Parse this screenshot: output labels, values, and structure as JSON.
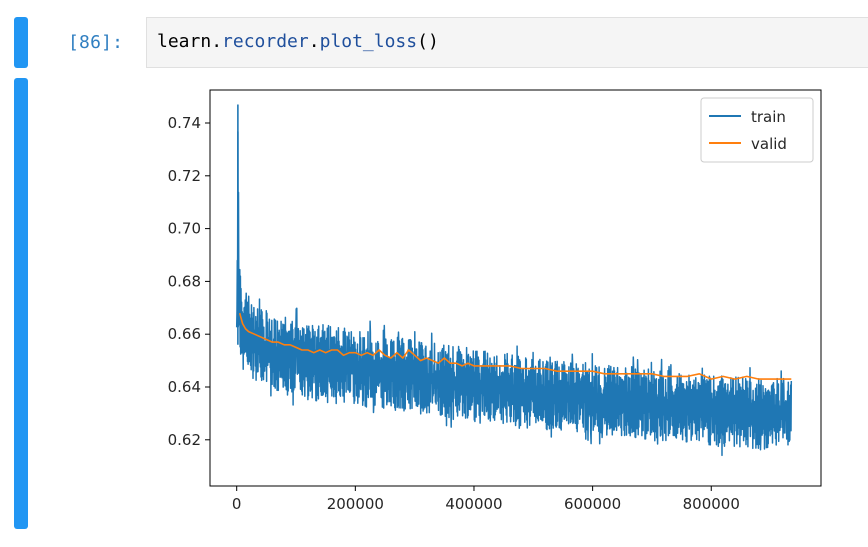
{
  "cell": {
    "prompt": "[86]:",
    "code": {
      "obj": "learn",
      "dot1": ".",
      "attr1": "recorder",
      "dot2": ".",
      "attr2": "plot_loss",
      "parens": "()"
    }
  },
  "colors": {
    "cell_bar": "#2196f3",
    "train": "#1f77b4",
    "valid": "#ff7f0e"
  },
  "chart_data": {
    "type": "line",
    "title": "",
    "xlabel": "",
    "ylabel": "",
    "xlim": [
      -45000,
      985000
    ],
    "ylim": [
      0.6025,
      0.7525
    ],
    "x_ticks": [
      0,
      200000,
      400000,
      600000,
      800000
    ],
    "y_ticks": [
      0.62,
      0.64,
      0.66,
      0.68,
      0.7,
      0.72,
      0.74
    ],
    "legend_position": "top-right",
    "grid": false,
    "series": [
      {
        "name": "train",
        "color": "#1f77b4",
        "x": [
          0,
          2000,
          4000,
          6000,
          8000,
          10000,
          15000,
          20000,
          30000,
          40000,
          50000,
          60000,
          80000,
          100000,
          150000,
          200000,
          250000,
          300000,
          350000,
          400000,
          450000,
          500000,
          550000,
          600000,
          650000,
          700000,
          750000,
          800000,
          850000,
          900000,
          935000
        ],
        "upper": [
          0.664,
          0.747,
          0.694,
          0.683,
          0.678,
          0.676,
          0.674,
          0.672,
          0.671,
          0.67,
          0.669,
          0.668,
          0.667,
          0.666,
          0.664,
          0.662,
          0.66,
          0.658,
          0.656,
          0.654,
          0.653,
          0.651,
          0.65,
          0.649,
          0.648,
          0.647,
          0.646,
          0.645,
          0.644,
          0.643,
          0.643
        ],
        "lower": [
          0.655,
          0.656,
          0.652,
          0.65,
          0.648,
          0.647,
          0.645,
          0.643,
          0.641,
          0.64,
          0.639,
          0.638,
          0.637,
          0.636,
          0.634,
          0.633,
          0.631,
          0.63,
          0.628,
          0.627,
          0.626,
          0.624,
          0.623,
          0.622,
          0.621,
          0.62,
          0.619,
          0.618,
          0.617,
          0.616,
          0.616
        ]
      },
      {
        "name": "valid",
        "color": "#ff7f0e",
        "x": [
          5000,
          10000,
          15000,
          20000,
          30000,
          40000,
          50000,
          60000,
          70000,
          80000,
          90000,
          100000,
          110000,
          120000,
          130000,
          140000,
          150000,
          160000,
          170000,
          180000,
          190000,
          200000,
          210000,
          220000,
          230000,
          240000,
          250000,
          260000,
          270000,
          280000,
          290000,
          300000,
          310000,
          320000,
          330000,
          340000,
          350000,
          360000,
          370000,
          380000,
          390000,
          400000,
          420000,
          440000,
          460000,
          480000,
          500000,
          520000,
          540000,
          560000,
          580000,
          600000,
          620000,
          640000,
          660000,
          680000,
          700000,
          720000,
          740000,
          760000,
          780000,
          800000,
          820000,
          840000,
          860000,
          880000,
          900000,
          920000,
          930000,
          935000
        ],
        "values": [
          0.668,
          0.664,
          0.662,
          0.661,
          0.66,
          0.659,
          0.658,
          0.657,
          0.657,
          0.656,
          0.656,
          0.655,
          0.654,
          0.654,
          0.653,
          0.654,
          0.653,
          0.654,
          0.654,
          0.652,
          0.653,
          0.653,
          0.652,
          0.653,
          0.652,
          0.654,
          0.652,
          0.651,
          0.653,
          0.651,
          0.654,
          0.652,
          0.65,
          0.651,
          0.65,
          0.649,
          0.651,
          0.649,
          0.649,
          0.648,
          0.649,
          0.648,
          0.648,
          0.648,
          0.648,
          0.647,
          0.647,
          0.647,
          0.646,
          0.646,
          0.646,
          0.646,
          0.645,
          0.645,
          0.645,
          0.645,
          0.645,
          0.644,
          0.644,
          0.644,
          0.645,
          0.643,
          0.644,
          0.643,
          0.644,
          0.643,
          0.643,
          0.643,
          0.643,
          0.643
        ]
      }
    ]
  }
}
